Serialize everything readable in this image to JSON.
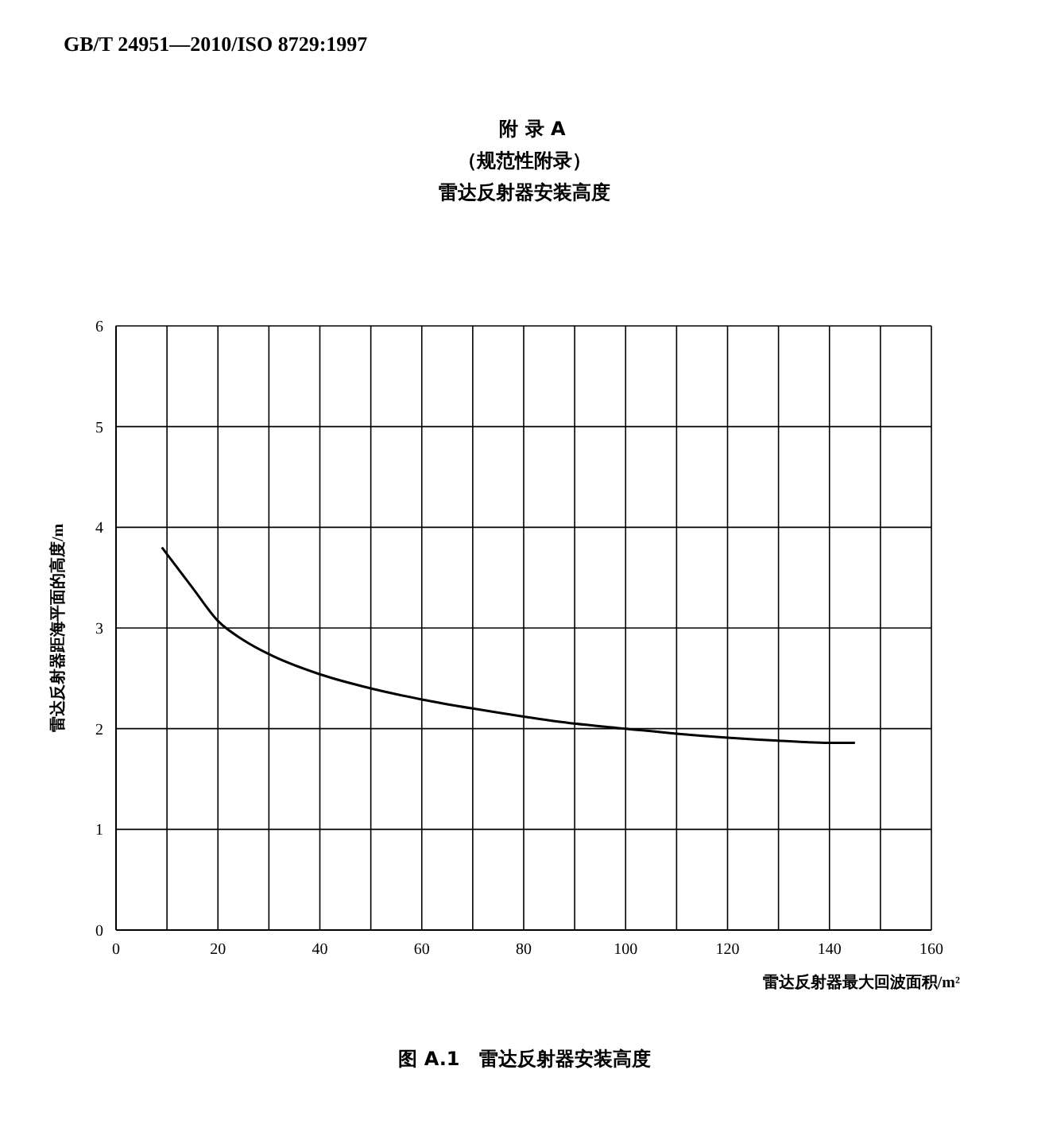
{
  "chart_data": {
    "type": "line",
    "title": "附 录 A",
    "subtitle": "（规范性附录）",
    "annotations": [
      "GB/T 24951—2010/ISO 8729:1997",
      "雷达反射器安装高度",
      "图 A.1　雷达反射器安装高度"
    ],
    "xlabel": "雷达反射器最大回波面积/m²",
    "ylabel": "雷达反射器距海平面的高度/m",
    "x": [
      9,
      15,
      20,
      25,
      30,
      40,
      50,
      60,
      70,
      80,
      90,
      100,
      110,
      120,
      130,
      140,
      145
    ],
    "series": [
      {
        "color": "#000000",
        "values": [
          3.8,
          3.4,
          3.07,
          2.88,
          2.74,
          2.54,
          2.4,
          2.29,
          2.2,
          2.12,
          2.05,
          2.0,
          1.95,
          1.91,
          1.88,
          1.86,
          1.86
        ]
      }
    ],
    "xlim": [
      0,
      160
    ],
    "xticks": [
      0,
      {
        "value": 10,
        "label": null
      },
      20,
      {
        "value": 30,
        "label": null
      },
      40,
      {
        "value": 50,
        "label": null
      },
      60,
      {
        "value": 70,
        "label": null
      },
      80,
      {
        "value": 90,
        "label": null
      },
      100,
      {
        "value": 110,
        "label": null
      },
      120,
      {
        "value": 130,
        "label": null
      },
      140,
      {
        "value": 150,
        "label": null
      },
      160
    ],
    "ylim": [
      0,
      6
    ],
    "yticks": [
      0,
      1,
      2,
      3,
      4,
      5,
      6
    ],
    "grid": true,
    "marker": "none",
    "line_style": "solid"
  }
}
